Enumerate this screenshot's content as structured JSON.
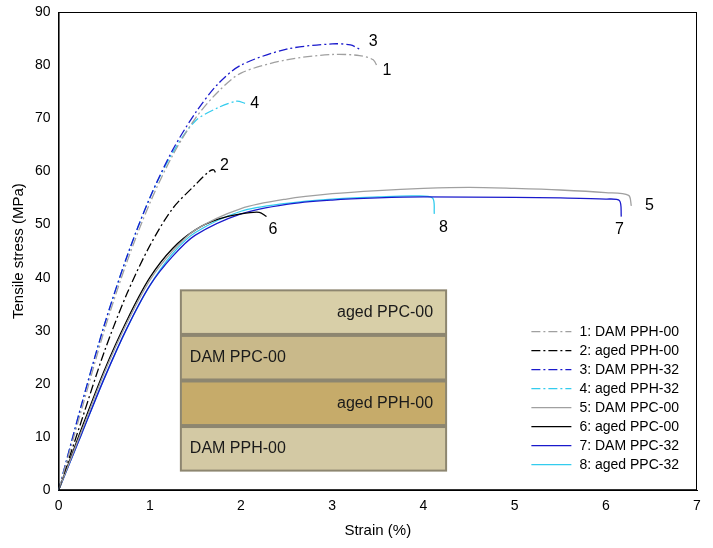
{
  "chart_data": {
    "type": "line",
    "x_label": "Strain (%)",
    "y_label": "Tensile stress (MPa)",
    "xlim": [
      0,
      7
    ],
    "xticks": [
      0,
      1,
      2,
      3,
      4,
      5,
      6,
      7
    ],
    "ylim": [
      0,
      90
    ],
    "yticks": [
      0,
      10,
      20,
      30,
      40,
      50,
      60,
      70,
      80,
      90
    ],
    "grid": false,
    "legend": "lower right",
    "series": [
      {
        "name": "1: DAM PPH-00",
        "color": "#a0a0a0",
        "line_style": "dashdot",
        "x": [
          0,
          0.25,
          0.5,
          0.75,
          1,
          1.25,
          1.5,
          1.75,
          2,
          2.5,
          3,
          3.3,
          3.45,
          3.5
        ],
        "values": [
          0,
          15,
          30,
          43,
          54,
          63,
          70,
          75,
          78.5,
          81,
          82,
          81.8,
          81,
          79.5
        ]
      },
      {
        "name": "2: aged PPH-00",
        "color": "#000000",
        "line_style": "dashdot",
        "x": [
          0,
          0.25,
          0.5,
          0.75,
          1,
          1.25,
          1.5,
          1.65,
          1.7,
          1.72
        ],
        "values": [
          0,
          13,
          26,
          37,
          46,
          53,
          57.5,
          60,
          60.3,
          59.8
        ]
      },
      {
        "name": "3: DAM PPH-32",
        "color": "#1a1acc",
        "line_style": "dashdot",
        "x": [
          0,
          0.25,
          0.5,
          0.75,
          1,
          1.25,
          1.5,
          1.75,
          2,
          2.5,
          3,
          3.2,
          3.3
        ],
        "values": [
          0,
          16,
          31,
          44,
          55,
          64,
          71,
          76.5,
          80,
          83,
          84,
          83.8,
          83
        ]
      },
      {
        "name": "4: aged PPH-32",
        "color": "#33ccee",
        "line_style": "dashdot",
        "x": [
          0,
          0.25,
          0.5,
          0.75,
          1,
          1.25,
          1.5,
          1.75,
          1.95,
          2.05
        ],
        "values": [
          0,
          16,
          31,
          44,
          55,
          63.5,
          69.5,
          72,
          73.2,
          72.8
        ]
      },
      {
        "name": "5: DAM PPC-00",
        "color": "#a0a0a0",
        "line_style": "solid",
        "x": [
          0,
          0.25,
          0.5,
          0.75,
          1,
          1.25,
          1.5,
          2,
          2.5,
          3,
          3.5,
          4,
          4.5,
          5,
          5.5,
          6,
          6.25,
          6.28
        ],
        "values": [
          0,
          11,
          22,
          31.5,
          39.5,
          45,
          49,
          53,
          54.8,
          55.8,
          56.4,
          56.8,
          57,
          56.8,
          56.5,
          56,
          55.5,
          53.5
        ]
      },
      {
        "name": "6: aged PPC-00",
        "color": "#000000",
        "line_style": "solid",
        "x": [
          0,
          0.25,
          0.5,
          0.75,
          1,
          1.25,
          1.5,
          1.75,
          2,
          2.2,
          2.28
        ],
        "values": [
          0,
          11.5,
          22.5,
          32,
          40,
          45.5,
          49,
          51,
          52,
          52.3,
          51.5
        ]
      },
      {
        "name": "7: DAM PPC-32",
        "color": "#1a1acc",
        "line_style": "solid",
        "x": [
          0,
          0.25,
          0.5,
          0.75,
          1,
          1.25,
          1.5,
          2,
          2.5,
          3,
          3.5,
          4,
          5,
          5.5,
          6,
          6.15,
          6.17
        ],
        "values": [
          0,
          10.5,
          21,
          30.5,
          38.5,
          44,
          48,
          52,
          53.8,
          54.6,
          55,
          55.2,
          55.1,
          55,
          54.8,
          54.5,
          51.5
        ]
      },
      {
        "name": "8: aged PPC-32",
        "color": "#33ccee",
        "line_style": "solid",
        "x": [
          0,
          0.25,
          0.5,
          0.75,
          1,
          1.25,
          1.5,
          2,
          2.5,
          3,
          3.5,
          3.9,
          4.1,
          4.12
        ],
        "values": [
          0,
          10.5,
          21,
          30.5,
          38.5,
          44.5,
          48.5,
          52.5,
          54,
          54.8,
          55.2,
          55.4,
          55,
          52
        ]
      }
    ],
    "annotations": [
      {
        "text": "1",
        "x": 3.6,
        "y": 79
      },
      {
        "text": "2",
        "x": 1.82,
        "y": 61
      },
      {
        "text": "3",
        "x": 3.45,
        "y": 84.5
      },
      {
        "text": "4",
        "x": 2.15,
        "y": 72.8
      },
      {
        "text": "5",
        "x": 6.48,
        "y": 53.5
      },
      {
        "text": "6",
        "x": 2.35,
        "y": 49
      },
      {
        "text": "7",
        "x": 6.15,
        "y": 49
      },
      {
        "text": "8",
        "x": 4.22,
        "y": 49.5
      }
    ],
    "inset_labels": [
      "aged PPC-00",
      "DAM PPC-00",
      "aged PPH-00",
      "DAM PPH-00"
    ]
  }
}
